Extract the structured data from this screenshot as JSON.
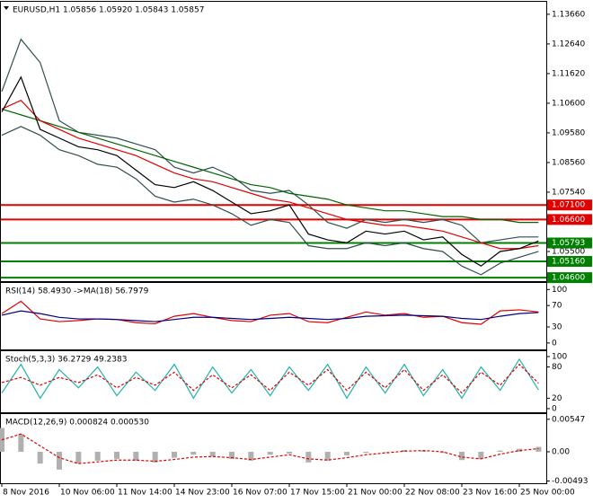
{
  "chart_data": [
    {
      "type": "line",
      "title": "EURUSD,H1  1.05856 1.05920 1.05843 1.05857",
      "ylim": [
        1.0448,
        1.1412
      ],
      "yticks": [
        {
          "value": 1.1366,
          "label": "1.13660"
        },
        {
          "value": 1.1264,
          "label": "1.12640"
        },
        {
          "value": 1.1162,
          "label": "1.11620"
        },
        {
          "value": 1.106,
          "label": "1.10600"
        },
        {
          "value": 1.0958,
          "label": "1.09580"
        },
        {
          "value": 1.0856,
          "label": "1.08560"
        },
        {
          "value": 1.0754,
          "label": "1.07540"
        },
        {
          "value": 1.055,
          "label": "1.05500"
        }
      ],
      "levels": [
        {
          "value": 1.071,
          "label": "1.07100",
          "color": "#e00000"
        },
        {
          "value": 1.066,
          "label": "1.06600",
          "color": "#e00000"
        },
        {
          "value": 1.05793,
          "label": "1.05793",
          "color": "#008000"
        },
        {
          "value": 1.0516,
          "label": "1.05160",
          "color": "#008000"
        },
        {
          "value": 1.046,
          "label": "1.04600",
          "color": "#008000"
        }
      ],
      "series": [
        {
          "color": "#2f4f4f",
          "values": [
            1.11,
            1.128,
            1.12,
            1.1,
            1.096,
            1.095,
            1.094,
            1.092,
            1.09,
            1.084,
            1.082,
            1.084,
            1.081,
            1.076,
            1.075,
            1.076,
            1.071,
            1.065,
            1.063,
            1.066,
            1.065,
            1.066,
            1.065,
            1.066,
            1.064,
            1.058,
            1.059,
            1.06,
            1.06
          ]
        },
        {
          "color": "#2f4f4f",
          "values": [
            1.095,
            1.098,
            1.095,
            1.09,
            1.088,
            1.085,
            1.084,
            1.08,
            1.074,
            1.072,
            1.073,
            1.071,
            1.068,
            1.064,
            1.066,
            1.065,
            1.057,
            1.056,
            1.056,
            1.058,
            1.057,
            1.058,
            1.056,
            1.055,
            1.05,
            1.047,
            1.051,
            1.053,
            1.055
          ]
        },
        {
          "color": "#006400",
          "values": [
            1.104,
            1.102,
            1.1,
            1.098,
            1.096,
            1.094,
            1.092,
            1.09,
            1.088,
            1.086,
            1.084,
            1.082,
            1.08,
            1.078,
            1.077,
            1.075,
            1.074,
            1.073,
            1.071,
            1.07,
            1.069,
            1.069,
            1.068,
            1.067,
            1.067,
            1.066,
            1.066,
            1.065,
            1.065
          ]
        },
        {
          "color": "#e00000",
          "values": [
            1.104,
            1.107,
            1.1,
            1.097,
            1.094,
            1.092,
            1.09,
            1.088,
            1.085,
            1.082,
            1.08,
            1.079,
            1.077,
            1.075,
            1.073,
            1.072,
            1.07,
            1.068,
            1.066,
            1.065,
            1.064,
            1.064,
            1.063,
            1.062,
            1.06,
            1.058,
            1.056,
            1.056,
            1.057
          ]
        },
        {
          "color": "#000000",
          "values": [
            1.103,
            1.115,
            1.097,
            1.094,
            1.091,
            1.09,
            1.088,
            1.083,
            1.078,
            1.077,
            1.079,
            1.076,
            1.072,
            1.068,
            1.069,
            1.071,
            1.061,
            1.059,
            1.058,
            1.062,
            1.061,
            1.062,
            1.059,
            1.06,
            1.054,
            1.05,
            1.055,
            1.056,
            1.0586
          ]
        }
      ]
    },
    {
      "type": "line",
      "title": "RSI(14) 58.4930 ->MA(18) 56.7979",
      "ylim": [
        -12,
        114
      ],
      "yticks": [
        100,
        70,
        30,
        0
      ],
      "series": [
        {
          "color": "#e00000",
          "values": [
            55,
            78,
            45,
            40,
            42,
            45,
            44,
            38,
            36,
            50,
            55,
            48,
            42,
            40,
            52,
            55,
            40,
            38,
            48,
            58,
            52,
            55,
            48,
            50,
            38,
            35,
            60,
            62,
            58
          ]
        },
        {
          "color": "#000080",
          "values": [
            52,
            60,
            55,
            48,
            45,
            45,
            44,
            42,
            40,
            44,
            48,
            48,
            46,
            44,
            46,
            48,
            46,
            44,
            46,
            50,
            51,
            52,
            51,
            50,
            46,
            44,
            50,
            55,
            57
          ]
        }
      ]
    },
    {
      "type": "line",
      "title": "Stoch(5,3,3) 36.2729 49.2383",
      "ylim": [
        -7,
        112
      ],
      "yticks": [
        100,
        80,
        20,
        0
      ],
      "series": [
        {
          "color": "#20b2aa",
          "values": [
            30,
            85,
            20,
            75,
            40,
            80,
            25,
            70,
            35,
            85,
            20,
            80,
            30,
            75,
            25,
            80,
            35,
            85,
            20,
            80,
            30,
            85,
            25,
            75,
            20,
            80,
            35,
            95,
            36
          ]
        },
        {
          "color": "#e00000",
          "dashed": true,
          "values": [
            50,
            60,
            45,
            60,
            50,
            65,
            40,
            60,
            45,
            70,
            35,
            65,
            40,
            65,
            35,
            70,
            45,
            75,
            35,
            70,
            40,
            75,
            35,
            65,
            30,
            70,
            45,
            85,
            49
          ]
        }
      ]
    },
    {
      "type": "bar",
      "title": "MACD(12,26,9) 0.000824 0.000530",
      "ylim": [
        -0.0053,
        0.0065
      ],
      "yticks": [
        {
          "value": 0.00547,
          "label": "0.00547"
        },
        {
          "value": 0,
          "label": "0.00"
        },
        {
          "value": -0.00493,
          "label": "-0.00493"
        }
      ],
      "color": "#b0b0b0",
      "categories": [
        "8 Nov 2016",
        null,
        null,
        "10 Nov 06:00",
        null,
        null,
        "11 Nov 14:00",
        null,
        null,
        "14 Nov 23:00",
        null,
        null,
        "16 Nov 07:00",
        null,
        null,
        "17 Nov 15:00",
        null,
        null,
        "21 Nov 00:00",
        null,
        null,
        "22 Nov 08:00",
        null,
        null,
        "23 Nov 16:00",
        null,
        null,
        "25 Nov 00:00",
        null
      ],
      "values": [
        0.004,
        0.003,
        -0.002,
        -0.003,
        -0.002,
        -0.0015,
        -0.0012,
        -0.0015,
        -0.0018,
        -0.001,
        -0.0005,
        -0.0008,
        -0.0012,
        -0.0015,
        -0.0005,
        -0.0003,
        -0.0018,
        -0.0015,
        -0.0006,
        -0.0002,
        0,
        0.0003,
        0.0002,
        -0.0002,
        -0.0014,
        -0.0012,
        0.0002,
        0.0005,
        0.000824
      ],
      "series": [
        {
          "color": "#e00000",
          "dashed": true,
          "values": [
            0.002,
            0.003,
            0.001,
            -0.001,
            -0.002,
            -0.0017,
            -0.0014,
            -0.0014,
            -0.0016,
            -0.0013,
            -0.0009,
            -0.0008,
            -0.001,
            -0.0013,
            -0.0009,
            -0.0005,
            -0.0012,
            -0.0014,
            -0.001,
            -0.0005,
            -0.0002,
            0.0001,
            0.0002,
            0,
            -0.0009,
            -0.0012,
            -0.0004,
            0.0002,
            0.00053
          ]
        }
      ]
    }
  ]
}
